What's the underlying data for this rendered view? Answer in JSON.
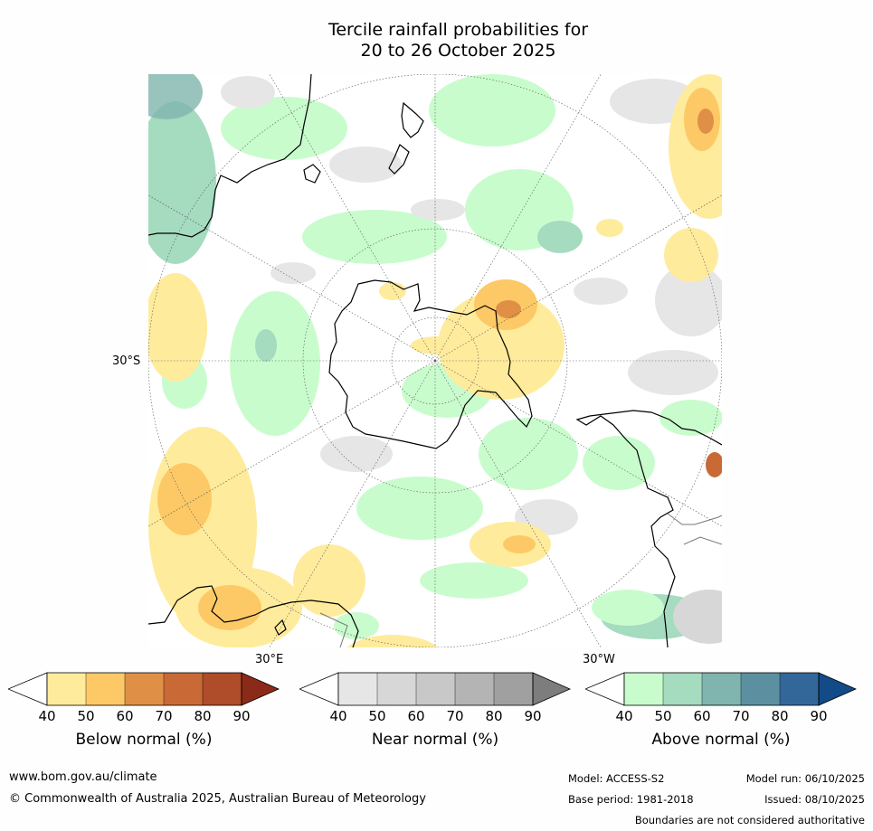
{
  "title": {
    "line1": "Tercile rainfall probabilities for",
    "line2": "20 to 26 October 2025"
  },
  "map": {
    "lat_labels": [
      "30°S",
      "30°E",
      "30°W"
    ]
  },
  "legends": [
    {
      "label": "Below normal (%)",
      "ticks": [
        "40",
        "50",
        "60",
        "70",
        "80",
        "90"
      ],
      "colors": [
        "#ffffff",
        "#ffeb9c",
        "#fdc966",
        "#df9046",
        "#c96a36",
        "#af4c2a",
        "#8c2a1a"
      ]
    },
    {
      "label": "Near normal (%)",
      "ticks": [
        "40",
        "50",
        "60",
        "70",
        "80",
        "90"
      ],
      "colors": [
        "#ffffff",
        "#e6e6e6",
        "#d7d7d7",
        "#c8c8c8",
        "#b4b4b4",
        "#a0a0a0",
        "#7d7d7d"
      ]
    },
    {
      "label": "Above normal (%)",
      "ticks": [
        "40",
        "50",
        "60",
        "70",
        "80",
        "90"
      ],
      "colors": [
        "#ffffff",
        "#c9fccd",
        "#a5dbbf",
        "#7fb5ae",
        "#5c90a0",
        "#33679a",
        "#134a88"
      ]
    }
  ],
  "footer": {
    "website": "www.bom.gov.au/climate",
    "copyright": "© Commonwealth of Australia 2025, Australian Bureau of Meteorology",
    "model": "Model: ACCESS-S2",
    "model_run": "Model run: 06/10/2025",
    "base_period": "Base period: 1981-2018",
    "issued": "Issued: 08/10/2025",
    "disclaimer": "Boundaries are not considered authoritative"
  }
}
